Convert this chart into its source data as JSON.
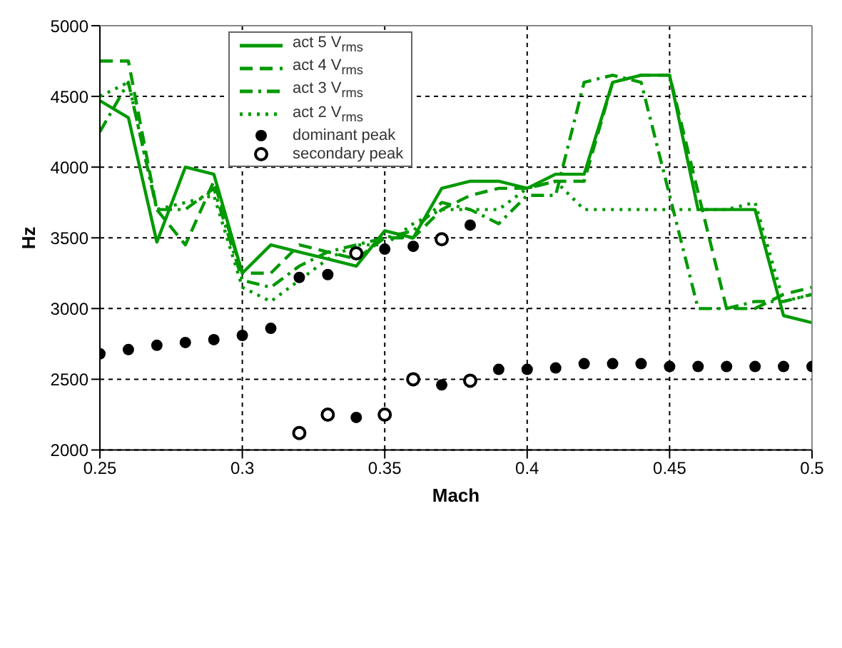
{
  "chart_data": {
    "type": "line",
    "xlabel": "Mach",
    "ylabel": "Hz",
    "x": [
      0.25,
      0.26,
      0.27,
      0.28,
      0.29,
      0.3,
      0.31,
      0.32,
      0.33,
      0.34,
      0.35,
      0.36,
      0.37,
      0.38,
      0.39,
      0.4,
      0.41,
      0.42,
      0.43,
      0.44,
      0.45,
      0.46,
      0.47,
      0.48,
      0.49,
      0.5
    ],
    "series": [
      {
        "name": "act 5 V$_{rms}$",
        "color": "#009900",
        "line_style": "solid",
        "marker": "none",
        "values": [
          4470,
          4350,
          3470,
          4000,
          3950,
          3250,
          3450,
          3400,
          3350,
          3300,
          3550,
          3500,
          3850,
          3900,
          3900,
          3850,
          3950,
          3950,
          4600,
          4650,
          4650,
          3700,
          3700,
          3700,
          2950,
          2900
        ]
      },
      {
        "name": "act 4 V$_{rms}$",
        "color": "#009900",
        "line_style": "dashed",
        "marker": "none",
        "values": [
          4750,
          4750,
          3700,
          3450,
          3900,
          3250,
          3250,
          3450,
          3400,
          3350,
          3500,
          3500,
          3700,
          3800,
          3850,
          3850,
          3900,
          3900,
          4600,
          4650,
          4650,
          3820,
          3000,
          3000,
          3100,
          3150
        ]
      },
      {
        "name": "act 3 V$_{rms}$",
        "color": "#009900",
        "line_style": "dashdot",
        "marker": "none",
        "values": [
          4250,
          4600,
          3700,
          3700,
          3850,
          3200,
          3150,
          3300,
          3400,
          3450,
          3500,
          3550,
          3750,
          3700,
          3600,
          3800,
          3800,
          4600,
          4650,
          4600,
          3800,
          3000,
          3000,
          3050,
          3050,
          3100
        ]
      },
      {
        "name": "act 2 V$_{rms}$",
        "color": "#009900",
        "line_style": "dotted",
        "marker": "none",
        "values": [
          4500,
          4600,
          3700,
          3750,
          3800,
          3150,
          3050,
          3200,
          3350,
          3450,
          3450,
          3600,
          3700,
          3700,
          3700,
          3850,
          3900,
          3700,
          3700,
          3700,
          3700,
          3700,
          3700,
          3750,
          3050,
          3100
        ]
      },
      {
        "name": "dominant peak",
        "type": "scatter",
        "color": "#000000",
        "marker": "circle",
        "values": [
          2680,
          2710,
          2740,
          2760,
          2780,
          2810,
          2860,
          3220,
          3240,
          2230,
          3420,
          3440,
          2460,
          3590,
          2570,
          2570,
          2580,
          2610,
          2610,
          2610,
          2590,
          2590,
          2590,
          2590,
          2590,
          2590
        ]
      },
      {
        "name": "secondary peak",
        "type": "scatter",
        "color": "#000000",
        "marker": "circle-open",
        "values": [
          null,
          null,
          null,
          null,
          null,
          null,
          null,
          2120,
          2250,
          3390,
          2250,
          2500,
          3490,
          2490,
          null,
          null,
          null,
          null,
          null,
          null,
          null,
          null,
          null,
          null,
          null,
          null
        ]
      }
    ],
    "xlim": [
      0.25,
      0.5
    ],
    "xticks": [
      0.25,
      0.3,
      0.35,
      0.4,
      0.45,
      0.5
    ],
    "ylim": [
      2000,
      5000
    ],
    "yticks": [
      2000,
      2500,
      3000,
      3500,
      4000,
      4500,
      5000
    ],
    "grid": true,
    "legend": "top left"
  }
}
